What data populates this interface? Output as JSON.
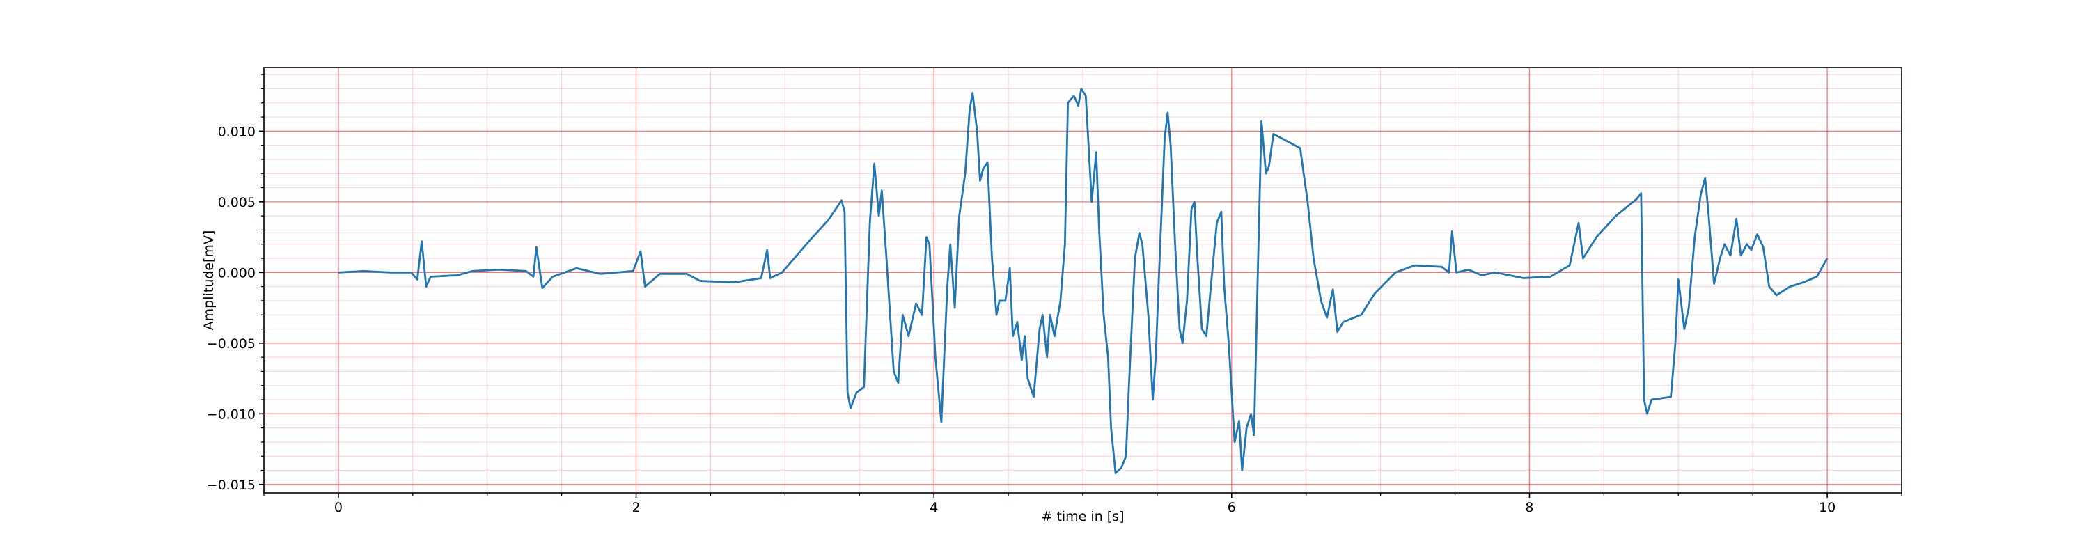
{
  "chart_data": {
    "type": "line",
    "xlabel": "# time in [s]",
    "ylabel": "Amplitude[mV]",
    "color": "#1f77b4",
    "grid": true,
    "minor_grid": true,
    "grid_color": "#ff0000",
    "minor_grid_color": "#ffb6c8",
    "xlim": [
      -0.5,
      10.5
    ],
    "ylim": [
      -0.0156,
      0.0145
    ],
    "xticks": [
      0,
      2,
      4,
      6,
      8,
      10
    ],
    "yticks": [
      {
        "value": -0.015,
        "label": "−0.015"
      },
      {
        "value": -0.01,
        "label": "−0.010"
      },
      {
        "value": -0.005,
        "label": "−0.005"
      },
      {
        "value": 0,
        "label": "0.000"
      },
      {
        "value": 0.005,
        "label": "0.005"
      },
      {
        "value": 0.01,
        "label": "0.010"
      }
    ],
    "xminorticks": [
      -0.5,
      0.5,
      1,
      1.5,
      2.5,
      3,
      3.5,
      4.5,
      5,
      5.5,
      6.5,
      7,
      7.5,
      8.5,
      9,
      9.5,
      10.5
    ],
    "yminorticks": [
      -0.014,
      -0.013,
      -0.012,
      -0.011,
      -0.009,
      -0.008,
      -0.007,
      -0.006,
      -0.004,
      -0.003,
      -0.002,
      -0.001,
      0.001,
      0.002,
      0.003,
      0.004,
      0.006,
      0.007,
      0.008,
      0.009,
      0.011,
      0.012,
      0.013,
      0.014
    ],
    "x": [
      0,
      0.17,
      0.35,
      0.49,
      0.53,
      0.56,
      0.59,
      0.62,
      0.8,
      0.9,
      1.08,
      1.26,
      1.31,
      1.33,
      1.37,
      1.44,
      1.6,
      1.76,
      1.98,
      2.03,
      2.06,
      2.16,
      2.34,
      2.43,
      2.66,
      2.84,
      2.88,
      2.9,
      2.98,
      3.16,
      3.29,
      3.38,
      3.4,
      3.42,
      3.44,
      3.48,
      3.53,
      3.57,
      3.6,
      3.63,
      3.65,
      3.68,
      3.73,
      3.76,
      3.79,
      3.83,
      3.88,
      3.92,
      3.95,
      3.97,
      4.01,
      4.05,
      4.09,
      4.11,
      4.14,
      4.17,
      4.21,
      4.24,
      4.26,
      4.29,
      4.31,
      4.33,
      4.36,
      4.39,
      4.42,
      4.44,
      4.48,
      4.51,
      4.53,
      4.56,
      4.59,
      4.61,
      4.63,
      4.67,
      4.71,
      4.73,
      4.76,
      4.78,
      4.81,
      4.85,
      4.88,
      4.9,
      4.94,
      4.97,
      4.99,
      5.02,
      5.06,
      5.09,
      5.11,
      5.14,
      5.17,
      5.19,
      5.22,
      5.26,
      5.29,
      5.31,
      5.35,
      5.38,
      5.4,
      5.44,
      5.47,
      5.49,
      5.52,
      5.55,
      5.57,
      5.59,
      5.62,
      5.65,
      5.67,
      5.7,
      5.73,
      5.75,
      5.77,
      5.8,
      5.83,
      5.86,
      5.9,
      5.93,
      5.95,
      5.98,
      6.02,
      6.05,
      6.07,
      6.1,
      6.13,
      6.15,
      6.18,
      6.2,
      6.23,
      6.25,
      6.28,
      6.37,
      6.46,
      6.51,
      6.55,
      6.6,
      6.64,
      6.68,
      6.71,
      6.75,
      6.87,
      6.96,
      7.1,
      7.23,
      7.41,
      7.46,
      7.48,
      7.51,
      7.59,
      7.68,
      7.77,
      7.96,
      8.14,
      8.27,
      8.33,
      8.36,
      8.45,
      8.58,
      8.72,
      8.75,
      8.77,
      8.79,
      8.82,
      8.95,
      8.98,
      9.0,
      9.04,
      9.07,
      9.11,
      9.15,
      9.18,
      9.2,
      9.24,
      9.28,
      9.31,
      9.35,
      9.39,
      9.42,
      9.46,
      9.49,
      9.53,
      9.57,
      9.61,
      9.66,
      9.75,
      9.84,
      9.93,
      10.0
    ],
    "values": [
      0,
      0.0001,
      0,
      0,
      -0.0005,
      0.0022,
      -0.001,
      -0.0003,
      -0.0002,
      0.0001,
      0.0002,
      0.0001,
      -0.0003,
      0.0018,
      -0.0011,
      -0.0003,
      0.0003,
      -0.0001,
      0.0001,
      0.0015,
      -0.001,
      -0.0001,
      -0.0001,
      -0.0006,
      -0.0007,
      -0.0004,
      0.0016,
      -0.0004,
      0,
      0.0022,
      0.0037,
      0.0051,
      0.0043,
      -0.0085,
      -0.0096,
      -0.0085,
      -0.0081,
      0.0036,
      0.0077,
      0.004,
      0.0058,
      0.0012,
      -0.007,
      -0.0078,
      -0.003,
      -0.0045,
      -0.0022,
      -0.003,
      0.0025,
      0.002,
      -0.006,
      -0.0106,
      -0.001,
      0.002,
      -0.0025,
      0.004,
      0.007,
      0.0115,
      0.0127,
      0.01,
      0.0065,
      0.0073,
      0.0078,
      0.001,
      -0.003,
      -0.002,
      -0.002,
      0.0003,
      -0.0045,
      -0.0035,
      -0.0062,
      -0.0045,
      -0.0075,
      -0.0088,
      -0.004,
      -0.003,
      -0.006,
      -0.003,
      -0.0045,
      -0.002,
      0.002,
      0.012,
      0.0125,
      0.0118,
      0.013,
      0.0125,
      0.005,
      0.0085,
      0.003,
      -0.003,
      -0.006,
      -0.011,
      -0.0142,
      -0.0138,
      -0.013,
      -0.008,
      0.001,
      0.0028,
      0.002,
      -0.003,
      -0.009,
      -0.006,
      0.002,
      0.0095,
      0.0113,
      0.009,
      0.002,
      -0.004,
      -0.005,
      -0.002,
      0.0045,
      0.005,
      0.001,
      -0.004,
      -0.0045,
      -0.001,
      0.0035,
      0.0043,
      -0.001,
      -0.005,
      -0.012,
      -0.0105,
      -0.014,
      -0.011,
      -0.01,
      -0.0115,
      0.002,
      0.0107,
      0.007,
      0.0075,
      0.0098,
      0.0093,
      0.0088,
      0.005,
      0.001,
      -0.002,
      -0.0032,
      -0.0012,
      -0.0042,
      -0.0035,
      -0.003,
      -0.0015,
      0,
      0.0005,
      0.0004,
      0,
      0.0029,
      0,
      0.0002,
      -0.0002,
      0,
      -0.0004,
      -0.0003,
      0.0005,
      0.0035,
      0.001,
      0.0025,
      0.004,
      0.0052,
      0.0056,
      -0.009,
      -0.01,
      -0.009,
      -0.0088,
      -0.005,
      -0.0005,
      -0.004,
      -0.0025,
      0.0025,
      0.0055,
      0.0067,
      0.0045,
      -0.0008,
      0.001,
      0.002,
      0.0012,
      0.0038,
      0.0012,
      0.002,
      0.0016,
      0.0027,
      0.0018,
      -0.001,
      -0.0016,
      -0.001,
      -0.0007,
      -0.0003,
      0.001
    ]
  }
}
